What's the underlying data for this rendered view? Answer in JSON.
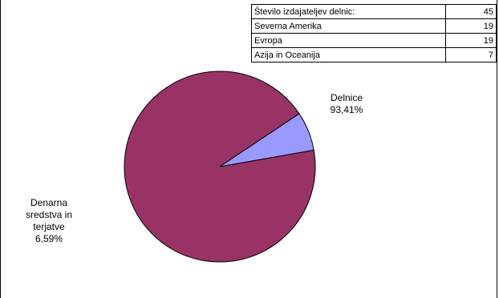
{
  "header_fragment": "...(partially cut-off title)...",
  "table": {
    "rows": [
      {
        "label": "Število izdajateljev delnic:",
        "value": "45"
      },
      {
        "label": "Severna Amerika",
        "value": "19"
      },
      {
        "label": "Evropa",
        "value": "19"
      },
      {
        "label": "Azija in Oceanija",
        "value": "7"
      }
    ]
  },
  "chart_data": {
    "type": "pie",
    "title": "",
    "slices": [
      {
        "label": "Delnice",
        "value": 93.41,
        "value_label": "93,41%",
        "color": "#993366"
      },
      {
        "label": "Denarna sredstva in terjatve",
        "value": 6.59,
        "value_label": "6,59%",
        "color": "#9999ff"
      }
    ]
  }
}
